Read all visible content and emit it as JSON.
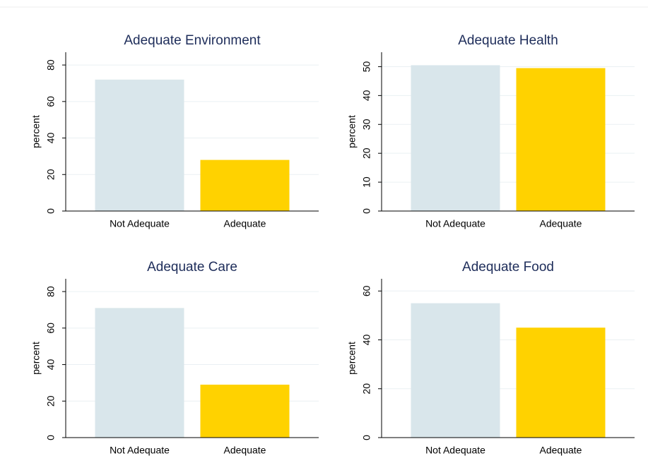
{
  "chart_data": [
    {
      "type": "bar",
      "title": "Adequate Environment",
      "ylabel": "percent",
      "categories": [
        "Not Adequate",
        "Adequate"
      ],
      "values": [
        72,
        28
      ],
      "colors": [
        "#d9e6eb",
        "#ffd200"
      ],
      "ylim": [
        0,
        87
      ],
      "yticks": [
        0,
        20,
        40,
        60,
        80
      ],
      "grid": true
    },
    {
      "type": "bar",
      "title": "Adequate Health",
      "ylabel": "percent",
      "categories": [
        "Not Adequate",
        "Adequate"
      ],
      "values": [
        50.5,
        49.5
      ],
      "colors": [
        "#d9e6eb",
        "#ffd200"
      ],
      "ylim": [
        0,
        55
      ],
      "yticks": [
        0,
        10,
        20,
        30,
        40,
        50
      ],
      "grid": true
    },
    {
      "type": "bar",
      "title": "Adequate Care",
      "ylabel": "percent",
      "categories": [
        "Not Adequate",
        "Adequate"
      ],
      "values": [
        71,
        29
      ],
      "colors": [
        "#d9e6eb",
        "#ffd200"
      ],
      "ylim": [
        0,
        87
      ],
      "yticks": [
        0,
        20,
        40,
        60,
        80
      ],
      "grid": true
    },
    {
      "type": "bar",
      "title": "Adequate Food",
      "ylabel": "percent",
      "categories": [
        "Not Adequate",
        "Adequate"
      ],
      "values": [
        55,
        45
      ],
      "colors": [
        "#d9e6eb",
        "#ffd200"
      ],
      "ylim": [
        0,
        65
      ],
      "yticks": [
        0,
        20,
        40,
        60
      ],
      "grid": true
    }
  ]
}
